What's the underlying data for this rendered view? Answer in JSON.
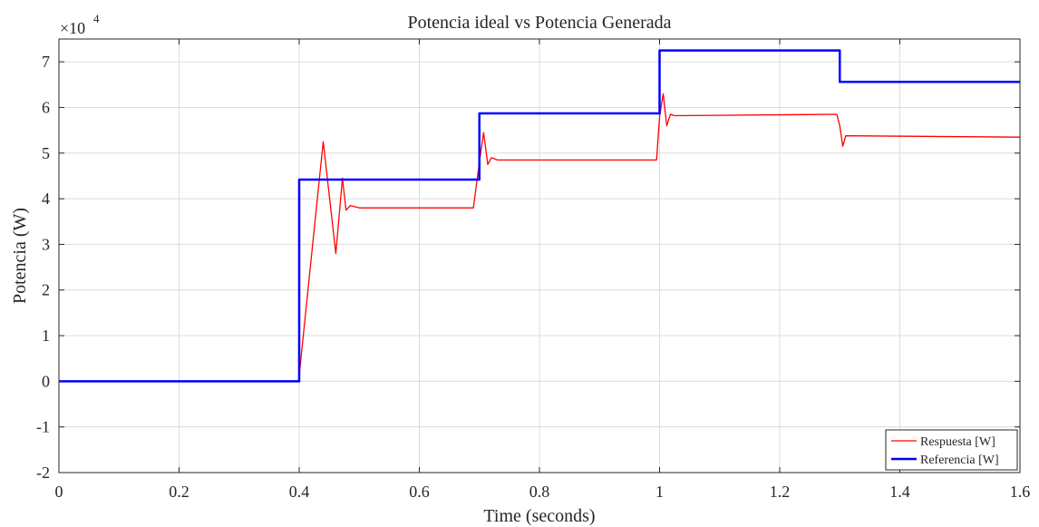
{
  "chart_data": {
    "type": "line",
    "title": "Potencia ideal vs Potencia Generada",
    "xlabel": "Time (seconds)",
    "ylabel": "Potencia (W)",
    "y_exponent_label": "×10",
    "y_exponent_power": "4",
    "xlim": [
      0,
      1.6
    ],
    "ylim": [
      -2,
      7.5
    ],
    "y_scale_factor": 10000,
    "xticks": [
      0,
      0.2,
      0.4,
      0.6,
      0.8,
      1,
      1.2,
      1.4,
      1.6
    ],
    "xtick_labels": [
      "0",
      "0.2",
      "0.4",
      "0.6",
      "0.8",
      "1",
      "1.2",
      "1.4",
      "1.6"
    ],
    "yticks": [
      -2,
      -1,
      0,
      1,
      2,
      3,
      4,
      5,
      6,
      7
    ],
    "ytick_labels": [
      "-2",
      "-1",
      "0",
      "1",
      "2",
      "3",
      "4",
      "5",
      "6",
      "7"
    ],
    "grid": true,
    "legend_position": "bottom-right",
    "series": [
      {
        "name": "Respuesta [W]",
        "color": "#ff0000",
        "line_width": "thin",
        "x": [
          0,
          0.399,
          0.44,
          0.461,
          0.472,
          0.478,
          0.485,
          0.5,
          0.69,
          0.7,
          0.707,
          0.714,
          0.72,
          0.73,
          0.995,
          1.0,
          1.006,
          1.012,
          1.018,
          1.025,
          1.295,
          1.3,
          1.305,
          1.31,
          1.6
        ],
        "y": [
          0,
          0,
          5.25,
          2.8,
          4.45,
          3.75,
          3.85,
          3.8,
          3.8,
          4.8,
          5.45,
          4.75,
          4.9,
          4.85,
          4.85,
          5.8,
          6.3,
          5.6,
          5.85,
          5.82,
          5.85,
          5.6,
          5.15,
          5.38,
          5.35
        ]
      },
      {
        "name": "Referencia [W]",
        "color": "#0000ff",
        "line_width": "thick",
        "x": [
          0,
          0.4,
          0.4,
          0.7,
          0.7,
          1.0,
          1.0,
          1.3,
          1.3,
          1.6
        ],
        "y": [
          0,
          0,
          4.42,
          4.42,
          5.87,
          5.87,
          7.25,
          7.25,
          6.56,
          6.56
        ]
      }
    ]
  }
}
